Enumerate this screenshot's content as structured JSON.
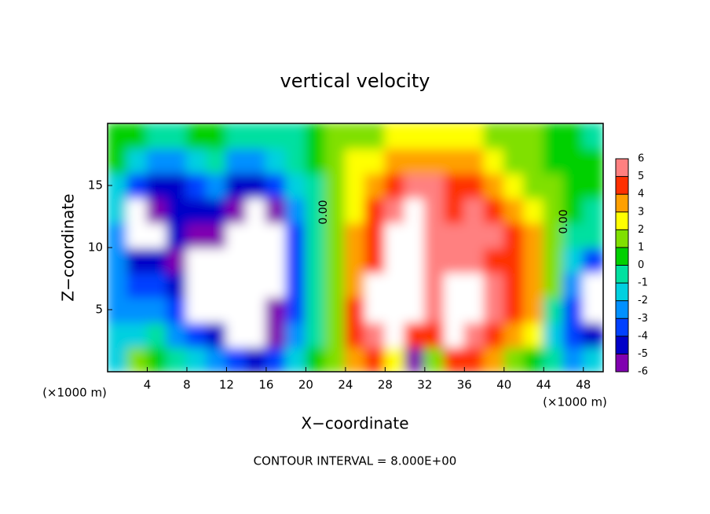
{
  "chart_data": {
    "type": "heatmap",
    "title": "vertical velocity",
    "x_label": "X−coordinate",
    "y_label": "Z−coordinate",
    "x_unit_label": "(×1000 m)",
    "y_unit_label": "(×1000 m)",
    "footer": "CONTOUR INTERVAL = 8.000E+00",
    "contour_labels": [
      "0.00",
      "0.00"
    ],
    "xlim": [
      0,
      50
    ],
    "ylim": [
      0,
      20
    ],
    "xticks": [
      4,
      8,
      12,
      16,
      20,
      24,
      28,
      32,
      36,
      40,
      44,
      48
    ],
    "yticks": [
      5,
      10,
      15
    ],
    "x": [
      1,
      3,
      5,
      7,
      9,
      11,
      13,
      15,
      17,
      19,
      21,
      23,
      25,
      27,
      29,
      31,
      33,
      35,
      37,
      39,
      41,
      43,
      45,
      47,
      49
    ],
    "y": [
      1,
      3,
      5,
      7,
      9,
      11,
      13,
      15,
      17,
      19
    ],
    "levels": [
      -6,
      -5,
      -4,
      -3,
      -2,
      -1,
      0,
      1,
      2,
      3,
      4,
      5,
      6
    ],
    "colors": [
      "#8000b0",
      "#0000c8",
      "#0040ff",
      "#0090ff",
      "#00d0e0",
      "#00e0a0",
      "#00d000",
      "#80e000",
      "#ffff00",
      "#ffa000",
      "#ff3000",
      "#ff8080"
    ],
    "z": [
      [
        -2,
        1,
        0,
        -1,
        -2,
        -3,
        -4,
        -5,
        -4,
        -2,
        0,
        1,
        3,
        4,
        2,
        -6,
        1,
        4,
        4,
        3,
        1,
        0,
        -1,
        -3,
        -2
      ],
      [
        -2,
        -2,
        -1,
        -3,
        -4,
        -5,
        -9,
        -9,
        -6,
        -3,
        -1,
        1,
        4,
        5,
        9,
        4,
        4,
        9,
        5,
        4,
        3,
        2,
        -2,
        -4,
        -5
      ],
      [
        -3,
        -3,
        -3,
        -4,
        -9,
        -9,
        -9,
        -9,
        -6,
        -4,
        -1,
        1,
        4,
        9,
        9,
        9,
        5,
        9,
        9,
        5,
        4,
        3,
        -1,
        -4,
        -9
      ],
      [
        -3,
        -4,
        -4,
        -5,
        -9,
        -9,
        -9,
        -9,
        -9,
        -4,
        -1,
        1,
        3,
        9,
        9,
        9,
        6,
        9,
        9,
        5,
        4,
        3,
        1,
        -3,
        -9
      ],
      [
        -3,
        -5,
        -5,
        -6,
        -9,
        -9,
        -9,
        -9,
        -9,
        -4,
        -1,
        1,
        3,
        4,
        9,
        9,
        5,
        5,
        5,
        4,
        4,
        3,
        1,
        -2,
        -4
      ],
      [
        -3,
        -9,
        -9,
        -5,
        -6,
        -6,
        -9,
        -9,
        -9,
        -4,
        -1,
        1,
        3,
        4,
        9,
        9,
        5,
        5,
        5,
        5,
        4,
        3,
        1,
        -1,
        -1
      ],
      [
        -2,
        -9,
        -6,
        -5,
        -5,
        -5,
        -6,
        -9,
        -6,
        -3,
        -1,
        1,
        2,
        4,
        5,
        9,
        5,
        4,
        5,
        4,
        3,
        2,
        1,
        0,
        -1
      ],
      [
        -2,
        -4,
        -5,
        -5,
        -4,
        -3,
        -5,
        -5,
        -4,
        -2,
        -1,
        1,
        2,
        3,
        4,
        5,
        5,
        4,
        4,
        3,
        2,
        1,
        1,
        0,
        0
      ],
      [
        0,
        -2,
        -3,
        -3,
        -2,
        -1,
        -3,
        -3,
        -2,
        -1,
        0,
        1,
        2,
        2,
        3,
        3,
        3,
        3,
        3,
        2,
        1,
        1,
        0,
        0,
        0
      ],
      [
        0,
        0,
        -1,
        -1,
        0,
        0,
        -1,
        -1,
        -1,
        -1,
        0,
        1,
        1,
        1,
        2,
        2,
        2,
        2,
        2,
        1,
        1,
        1,
        0,
        0,
        -1
      ]
    ]
  }
}
